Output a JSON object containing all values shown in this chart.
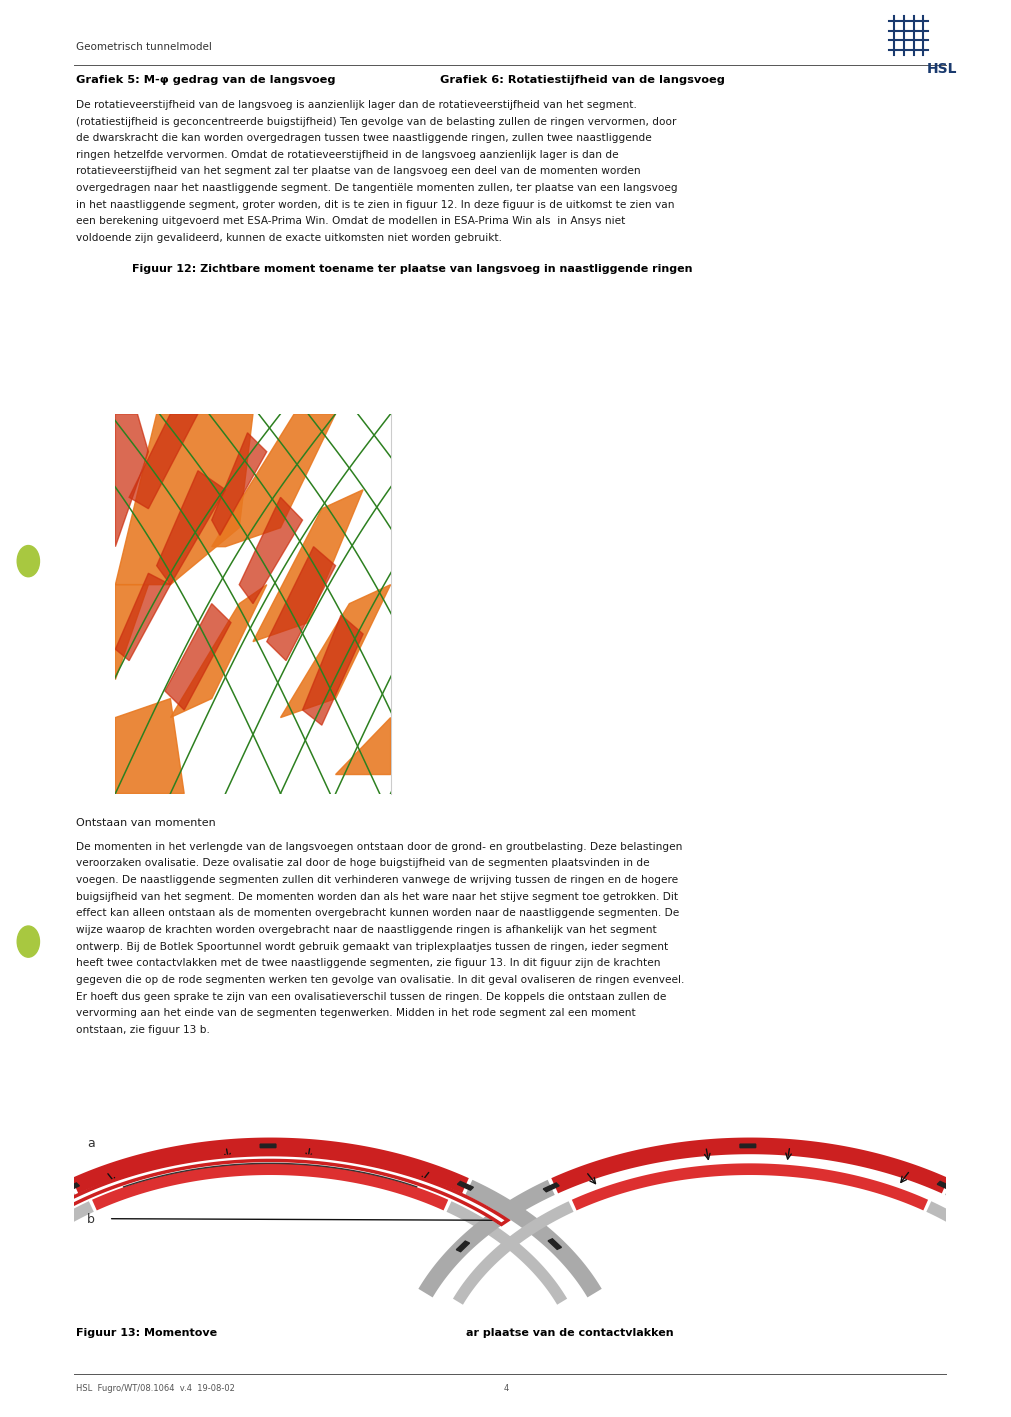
{
  "page_bg": "#ffffff",
  "header_text": "Geometrisch tunnelmodel",
  "logo_text": "HSL",
  "grafiek5_title": "Grafiek 5: M-φ gedrag van de langsvoeg",
  "grafiek6_title": "Grafiek 6: Rotatiestijfheid van de langsvoeg",
  "paragraph1": "De rotatieveerstijfheid van de langsvoeg is aanzienlijk lager dan de rotatieveerstijfheid van het segment.\n(rotatiestijfheid is geconcentreerde buigstijfheid) Ten gevolge van de belasting zullen de ringen vervormen, door\nde dwarskracht die kan worden overgedragen tussen twee naastliggende ringen, zullen twee naastliggende\nringen hetzelfde vervormen. Omdat de rotatieveerstijfheid in de langsvoeg aanzienlijk lager is dan de\nrotatieveerstijfheid van het segment zal ter plaatse van de langsvoeg een deel van de momenten worden\novergedragen naar het naastliggende segment. De tangentiële momenten zullen, ter plaatse van een langsvoeg\nin het naastliggende segment, groter worden, dit is te zien in figuur 12. In deze figuur is de uitkomst te zien van\neen berekening uitgevoerd met ESA-Prima Win. Omdat de modellen in ESA-Prima Win als  in Ansys niet\nvoldoende zijn gevalideerd, kunnen de exacte uitkomsten niet worden gebruikt.",
  "figuur12_title": "Figuur 12: Zichtbare moment toename ter plaatse van langsvoeg in naastliggende ringen",
  "ontstaan_header": "Ontstaan van momenten",
  "paragraph2": "De momenten in het verlengde van de langsvoegen ontstaan door de grond- en groutbelasting. Deze belastingen\nveroorzaken ovalisatie. Deze ovalisatie zal door de hoge buigstijfheid van de segmenten plaatsvinden in de\nvoegen. De naastliggende segmenten zullen dit verhinderen vanwege de wrijving tussen de ringen en de hogere\nbuigsijfheid van het segment. De momenten worden dan als het ware naar het stijve segment toe getrokken. Dit\neffect kan alleen ontstaan als de momenten overgebracht kunnen worden naar de naastliggende segmenten. De\nwijze waarop de krachten worden overgebracht naar de naastliggende ringen is afhankelijk van het segment\nontwerp. Bij de Botlek Spoortunnel wordt gebruik gemaakt van triplexplaatjes tussen de ringen, ieder segment\nheeft twee contactvlakken met de twee naastliggende segmenten, zie figuur 13. In dit figuur zijn de krachten\ngegeven die op de rode segmenten werken ten gevolge van ovalisatie. In dit geval ovaliseren de ringen evenveel.\nEr hoeft dus geen sprake te zijn van een ovalisatieverschil tussen de ringen. De koppels die ontstaan zullen de\nvervorming aan het einde van de segmenten tegenwerken. Midden in het rode segment zal een moment\nontstaan, zie figuur 13 b.",
  "figuur13_title": "Figuur 13: Momentove",
  "figuur13_title2": "ar plaatse van de contactvlakken",
  "text_color": "#1a1a1a",
  "bold_color": "#000000",
  "green_dot_color": "#a8c840"
}
